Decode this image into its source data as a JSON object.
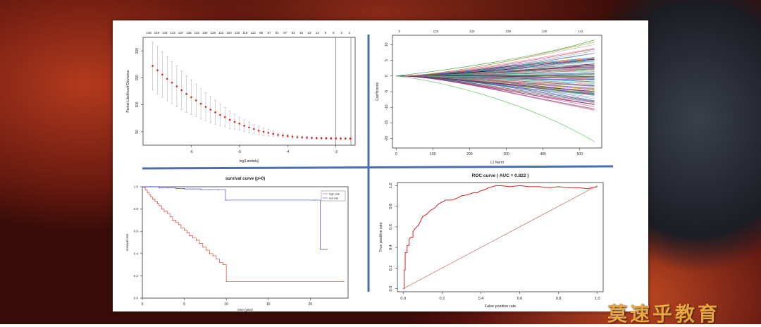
{
  "watermark": "莫速乎教育",
  "chart_data": [
    {
      "type": "scatter",
      "subtype": "cv-error-bars",
      "title": "",
      "xlabel": "log(Lambda)",
      "ylabel": "Partial Likelihood Deviance",
      "top_ticks": [
        "146",
        "146",
        "144",
        "142",
        "137",
        "135",
        "131",
        "130",
        "126",
        "122",
        "120",
        "119",
        "116",
        "112",
        "95",
        "87",
        "81",
        "57",
        "52",
        "40",
        "23",
        "14",
        "9",
        "6",
        "3",
        "1"
      ],
      "x_ticks": [
        "-6",
        "-5",
        "-4",
        "-3"
      ],
      "y_ticks": [
        "50",
        "100",
        "150",
        "200"
      ],
      "xlim": [
        -7.0,
        -2.6
      ],
      "ylim": [
        25,
        225
      ],
      "x": [
        -6.8,
        -6.7,
        -6.6,
        -6.5,
        -6.4,
        -6.3,
        -6.2,
        -6.1,
        -6.0,
        -5.9,
        -5.8,
        -5.7,
        -5.6,
        -5.5,
        -5.4,
        -5.3,
        -5.2,
        -5.1,
        -5.0,
        -4.9,
        -4.8,
        -4.7,
        -4.6,
        -4.5,
        -4.4,
        -4.3,
        -4.2,
        -4.1,
        -4.0,
        -3.9,
        -3.8,
        -3.7,
        -3.6,
        -3.5,
        -3.4,
        -3.3,
        -3.2,
        -3.1,
        -3.0,
        -2.9,
        -2.8,
        -2.7
      ],
      "y": [
        172,
        164,
        156,
        148,
        141,
        134,
        127,
        120,
        114,
        108,
        102,
        96,
        91,
        86,
        81,
        77,
        72,
        68,
        65,
        61,
        58,
        55,
        52,
        50,
        48,
        46,
        44,
        43,
        42,
        41,
        40,
        39.5,
        39,
        38.5,
        38.2,
        38,
        37.8,
        37.6,
        37.5,
        37.4,
        37.3,
        37.2
      ],
      "err": [
        45,
        44,
        42,
        41,
        39,
        38,
        36,
        34,
        32,
        30,
        28,
        26,
        24,
        22,
        20,
        18,
        16,
        14,
        12,
        11,
        10,
        9,
        8,
        7,
        6,
        5,
        4.5,
        4,
        3.5,
        3,
        3,
        2.5,
        2.5,
        2,
        2,
        2,
        2,
        2,
        2,
        2,
        2,
        2
      ],
      "vlines": [
        -3.0,
        -2.5
      ]
    },
    {
      "type": "line",
      "subtype": "coefficient-paths",
      "title": "",
      "xlabel": "L1 Norm",
      "ylabel": "Coefficients",
      "top_ticks": [
        "0",
        "123",
        "132",
        "138",
        "140",
        "141"
      ],
      "x_ticks": [
        "0",
        "100",
        "200",
        "300",
        "400",
        "500"
      ],
      "y_ticks": [
        "-20",
        "-15",
        "-10",
        "-5",
        "0",
        "5",
        "10"
      ],
      "xlim": [
        -10,
        560
      ],
      "ylim": [
        -23,
        13
      ]
    },
    {
      "type": "line",
      "subtype": "step",
      "title": "survival curve (p≈0)",
      "xlabel": "time (year)",
      "ylabel": "survival rate",
      "x_ticks": [
        "0",
        "5",
        "10",
        "15",
        "20"
      ],
      "y_ticks": [
        "0.0",
        "0.2",
        "0.4",
        "0.6",
        "0.8",
        "1.0"
      ],
      "xlim": [
        0,
        24.5
      ],
      "ylim": [
        0,
        1.0
      ],
      "legend": [
        "high risk",
        "low risk"
      ],
      "legend_position": "top-right",
      "series": [
        {
          "name": "high risk",
          "color": "#e8403a",
          "x": [
            0,
            0.2,
            0.4,
            0.6,
            0.8,
            1.0,
            1.2,
            1.5,
            1.8,
            2.0,
            2.3,
            2.6,
            3.0,
            3.3,
            3.6,
            4.0,
            4.3,
            4.6,
            5.0,
            5.3,
            5.6,
            6.0,
            6.4,
            6.8,
            7.2,
            7.6,
            8.0,
            8.4,
            8.8,
            9.2,
            9.6,
            10.0,
            24.0
          ],
          "y": [
            1.0,
            0.99,
            0.97,
            0.95,
            0.93,
            0.91,
            0.89,
            0.87,
            0.85,
            0.83,
            0.8,
            0.78,
            0.76,
            0.73,
            0.7,
            0.68,
            0.66,
            0.63,
            0.61,
            0.59,
            0.56,
            0.54,
            0.52,
            0.49,
            0.46,
            0.43,
            0.4,
            0.38,
            0.35,
            0.32,
            0.3,
            0.15,
            0.15
          ]
        },
        {
          "name": "low risk",
          "color": "#3a4ad8",
          "x": [
            0,
            1.0,
            2.0,
            3.0,
            4.0,
            5.0,
            6.0,
            7.0,
            8.0,
            9.0,
            9.9,
            20.5,
            21.2,
            22.0
          ],
          "y": [
            1.0,
            1.0,
            0.99,
            0.99,
            0.985,
            0.98,
            0.98,
            0.975,
            0.975,
            0.975,
            0.88,
            0.88,
            0.44,
            0.44
          ]
        }
      ]
    },
    {
      "type": "line",
      "subtype": "roc",
      "title": "ROC curve ( AUC = 0.822 )",
      "xlabel": "False positive rate",
      "ylabel": "True positive rate",
      "x_ticks": [
        "0.0",
        "0.2",
        "0.4",
        "0.6",
        "0.8",
        "1.0"
      ],
      "y_ticks": [
        "0.0",
        "0.2",
        "0.4",
        "0.6",
        "0.8",
        "1.0"
      ],
      "xlim": [
        -0.03,
        1.03
      ],
      "ylim": [
        -0.03,
        1.03
      ],
      "series": [
        {
          "name": "",
          "color": "#d82020",
          "x": [
            0,
            0.005,
            0.005,
            0.01,
            0.01,
            0.02,
            0.02,
            0.03,
            0.03,
            0.04,
            0.05,
            0.05,
            0.06,
            0.07,
            0.08,
            0.09,
            0.1,
            0.12,
            0.14,
            0.16,
            0.18,
            0.2,
            0.22,
            0.25,
            0.28,
            0.3,
            0.33,
            0.36,
            0.38,
            0.4,
            0.42,
            0.44,
            0.46,
            0.48,
            0.5,
            0.55,
            0.6,
            0.65,
            0.7,
            0.75,
            0.8,
            0.85,
            0.9,
            0.95,
            1.0
          ],
          "y": [
            0,
            0,
            0.18,
            0.18,
            0.35,
            0.35,
            0.42,
            0.42,
            0.48,
            0.5,
            0.5,
            0.55,
            0.58,
            0.6,
            0.62,
            0.66,
            0.7,
            0.72,
            0.76,
            0.78,
            0.82,
            0.84,
            0.86,
            0.86,
            0.88,
            0.9,
            0.91,
            0.93,
            0.93,
            0.95,
            0.96,
            0.98,
            0.99,
            1.0,
            1.0,
            0.99,
            1.0,
            0.99,
            0.99,
            0.98,
            0.99,
            0.98,
            0.98,
            0.97,
            0.99
          ]
        },
        {
          "name": "",
          "color": "#c05050",
          "x": [
            0,
            1
          ],
          "y": [
            0,
            1
          ]
        }
      ]
    }
  ]
}
